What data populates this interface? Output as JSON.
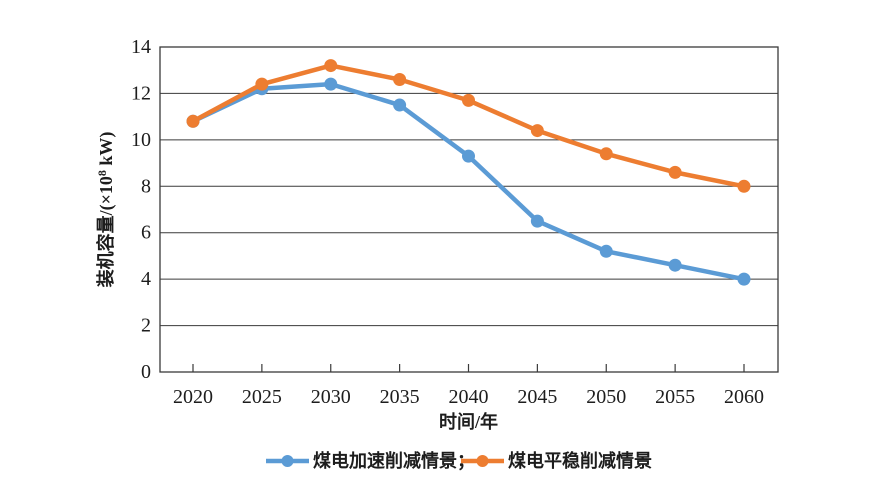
{
  "chart": {
    "background": "#ffffff",
    "axis_color": "#3a3a3a",
    "text_color": "#1d1d1d",
    "xlabel": "时间/年",
    "ylabel_prefix": "装机容量/(×10",
    "ylabel_sup": "8",
    "ylabel_suffix": " kW)",
    "legend": [
      {
        "label": "煤电加速削减情景；",
        "color": "#5b9bd5"
      },
      {
        "label": "煤电平稳削减情景",
        "color": "#ed7d31"
      }
    ]
  },
  "chart_data": {
    "type": "line",
    "title": "",
    "xlabel": "时间/年",
    "ylabel": "装机容量/(×10⁸ kW)",
    "categories": [
      2020,
      2025,
      2030,
      2035,
      2040,
      2045,
      2050,
      2055,
      2060
    ],
    "series": [
      {
        "id": "accelerated-reduction",
        "name": "煤电加速削减情景",
        "color": "#5b9bd5",
        "values": [
          10.8,
          12.2,
          12.4,
          11.5,
          9.3,
          6.5,
          5.2,
          4.6,
          4.0
        ]
      },
      {
        "id": "steady-reduction",
        "name": "煤电平稳削减情景",
        "color": "#ed7d31",
        "values": [
          10.8,
          12.4,
          13.2,
          12.6,
          11.7,
          10.4,
          9.4,
          8.6,
          8.0
        ]
      }
    ],
    "ylim": [
      0,
      14
    ],
    "ytick_step": 2,
    "grid": true,
    "legend_position": "bottom"
  }
}
